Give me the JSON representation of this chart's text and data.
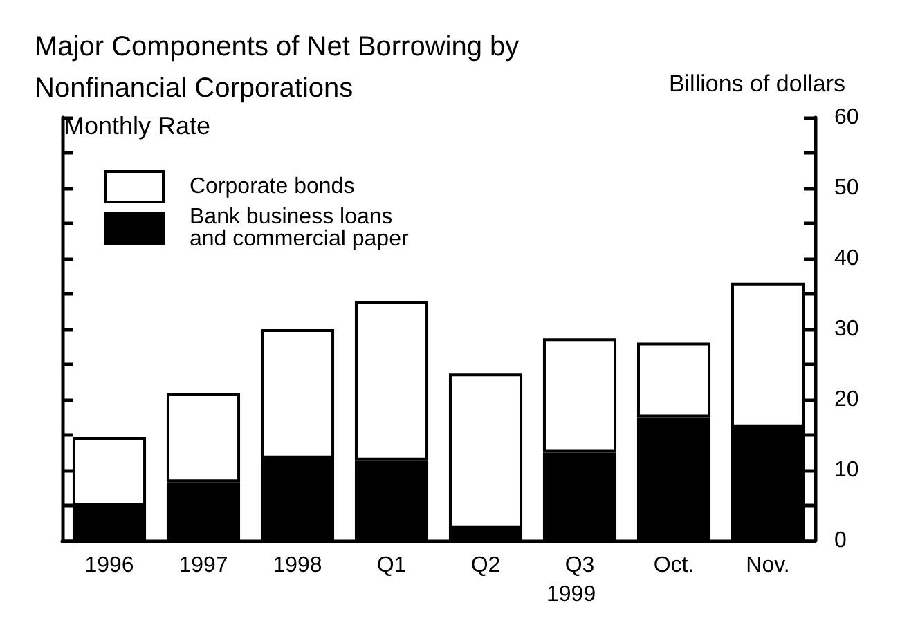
{
  "chart_data": {
    "type": "bar",
    "title": "Major Components of Net Borrowing by Nonfinancial Corporations",
    "ylabel": "Billions of dollars",
    "annotations": [
      "Monthly Rate",
      "1999"
    ],
    "categories": [
      "1996",
      "1997",
      "1998",
      "Q1",
      "Q2",
      "Q3",
      "Oct.",
      "Nov."
    ],
    "stacked": true,
    "series": [
      {
        "name": "Bank business loans and commercial paper",
        "color": "#000000",
        "values": [
          4.9,
          8.3,
          11.7,
          11.4,
          1.8,
          12.5,
          17.5,
          16.1
        ]
      },
      {
        "name": "Corporate bonds",
        "color": "#ffffff",
        "values": [
          9.8,
          12.6,
          18.3,
          22.6,
          21.9,
          16.2,
          10.6,
          20.5
        ]
      }
    ],
    "ylim": [
      0,
      60
    ],
    "yticks": [
      0,
      {
        "value": 5,
        "label": null
      },
      10,
      {
        "value": 15,
        "label": null
      },
      20,
      {
        "value": 25,
        "label": null
      },
      30,
      {
        "value": 35,
        "label": null
      },
      40,
      {
        "value": 45,
        "label": null
      },
      50,
      {
        "value": 55,
        "label": null
      },
      60
    ],
    "grid": false,
    "legend": "top left"
  }
}
